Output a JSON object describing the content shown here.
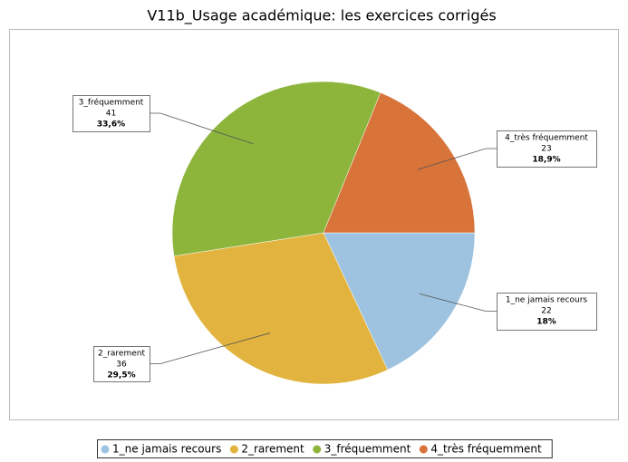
{
  "chart_data": {
    "type": "pie",
    "title": "V11b_Usage académique: les exercices corrigés",
    "categories": [
      "1_ne jamais recours",
      "2_rarement",
      "3_fréquemment",
      "4_très fréquemment"
    ],
    "values": [
      22,
      36,
      41,
      23
    ],
    "percents": [
      18,
      29.5,
      33.6,
      18.9
    ],
    "percent_labels": [
      "18%",
      "29,5%",
      "33,6%",
      "18,9%"
    ],
    "colors": [
      "#9dc3e0",
      "#e2b43f",
      "#8db53c",
      "#d8733a"
    ],
    "legend": "bottom"
  }
}
